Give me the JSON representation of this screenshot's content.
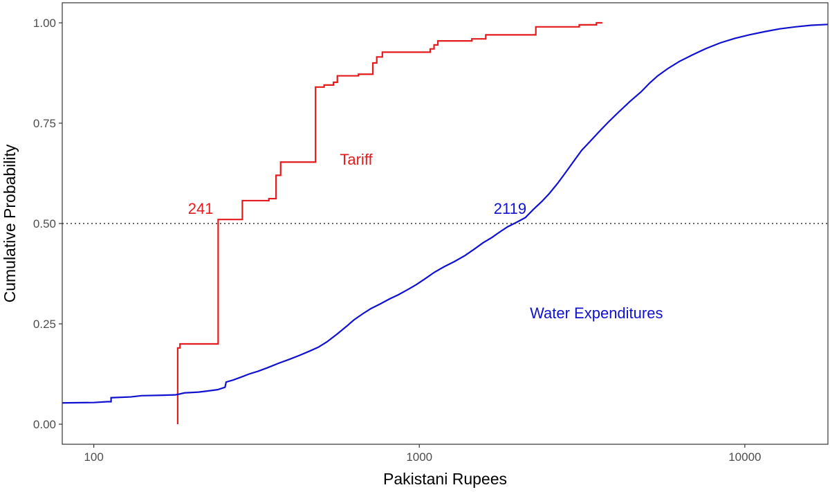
{
  "chart_data": {
    "type": "line",
    "step": true,
    "xlabel": "Pakistani Rupees",
    "ylabel": "Cumulative Probability",
    "x_scale": "log10",
    "xlim": [
      80,
      18000
    ],
    "ylim": [
      -0.05,
      1.05
    ],
    "x_ticks": [
      100,
      1000,
      10000
    ],
    "x_tick_labels": [
      "100",
      "1000",
      "10000"
    ],
    "y_ticks": [
      0,
      0.25,
      0.5,
      0.75,
      1
    ],
    "y_tick_labels": [
      "0.00",
      "0.25",
      "0.50",
      "0.75",
      "1.00"
    ],
    "grid": false,
    "reference_line": {
      "y": 0.5,
      "style": "dotted",
      "color": "#333333"
    },
    "series": [
      {
        "color": "#e41a1c",
        "label_color": "#e41a1c",
        "points": [
          [
            181,
            0.0
          ],
          [
            181,
            0.19
          ],
          [
            184,
            0.19
          ],
          [
            184,
            0.2
          ],
          [
            241,
            0.2
          ],
          [
            241,
            0.51
          ],
          [
            286,
            0.51
          ],
          [
            286,
            0.557
          ],
          [
            345,
            0.557
          ],
          [
            345,
            0.562
          ],
          [
            363,
            0.562
          ],
          [
            363,
            0.62
          ],
          [
            375,
            0.62
          ],
          [
            375,
            0.653
          ],
          [
            480,
            0.653
          ],
          [
            480,
            0.84
          ],
          [
            510,
            0.84
          ],
          [
            510,
            0.845
          ],
          [
            545,
            0.845
          ],
          [
            545,
            0.852
          ],
          [
            560,
            0.852
          ],
          [
            560,
            0.868
          ],
          [
            650,
            0.868
          ],
          [
            650,
            0.872
          ],
          [
            720,
            0.872
          ],
          [
            720,
            0.9
          ],
          [
            740,
            0.9
          ],
          [
            740,
            0.915
          ],
          [
            770,
            0.915
          ],
          [
            770,
            0.927
          ],
          [
            1080,
            0.927
          ],
          [
            1080,
            0.935
          ],
          [
            1110,
            0.935
          ],
          [
            1110,
            0.945
          ],
          [
            1140,
            0.945
          ],
          [
            1140,
            0.955
          ],
          [
            1450,
            0.955
          ],
          [
            1450,
            0.96
          ],
          [
            1600,
            0.96
          ],
          [
            1600,
            0.97
          ],
          [
            2280,
            0.97
          ],
          [
            2280,
            0.99
          ],
          [
            3100,
            0.99
          ],
          [
            3100,
            0.995
          ],
          [
            3500,
            0.995
          ],
          [
            3500,
            1.0
          ],
          [
            3650,
            1.0
          ]
        ]
      },
      {
        "color": "#1010d0",
        "label_color": "#1010d0",
        "points": [
          [
            80,
            0.053
          ],
          [
            100,
            0.054
          ],
          [
            110,
            0.056
          ],
          [
            113,
            0.056
          ],
          [
            113,
            0.066
          ],
          [
            130,
            0.068
          ],
          [
            140,
            0.071
          ],
          [
            160,
            0.072
          ],
          [
            178,
            0.073
          ],
          [
            183,
            0.075
          ],
          [
            190,
            0.078
          ],
          [
            210,
            0.08
          ],
          [
            225,
            0.083
          ],
          [
            240,
            0.086
          ],
          [
            253,
            0.092
          ],
          [
            255,
            0.105
          ],
          [
            268,
            0.11
          ],
          [
            285,
            0.118
          ],
          [
            300,
            0.125
          ],
          [
            320,
            0.132
          ],
          [
            340,
            0.14
          ],
          [
            370,
            0.152
          ],
          [
            400,
            0.162
          ],
          [
            430,
            0.172
          ],
          [
            460,
            0.182
          ],
          [
            490,
            0.192
          ],
          [
            520,
            0.205
          ],
          [
            560,
            0.225
          ],
          [
            600,
            0.245
          ],
          [
            630,
            0.26
          ],
          [
            670,
            0.275
          ],
          [
            710,
            0.288
          ],
          [
            760,
            0.3
          ],
          [
            810,
            0.312
          ],
          [
            860,
            0.322
          ],
          [
            920,
            0.335
          ],
          [
            980,
            0.348
          ],
          [
            1040,
            0.362
          ],
          [
            1110,
            0.378
          ],
          [
            1190,
            0.392
          ],
          [
            1280,
            0.405
          ],
          [
            1380,
            0.42
          ],
          [
            1480,
            0.437
          ],
          [
            1570,
            0.452
          ],
          [
            1670,
            0.465
          ],
          [
            1760,
            0.478
          ],
          [
            1870,
            0.492
          ],
          [
            1990,
            0.503
          ],
          [
            2119,
            0.515
          ],
          [
            2240,
            0.535
          ],
          [
            2380,
            0.555
          ],
          [
            2510,
            0.575
          ],
          [
            2660,
            0.6
          ],
          [
            2820,
            0.628
          ],
          [
            2980,
            0.655
          ],
          [
            3150,
            0.682
          ],
          [
            3350,
            0.705
          ],
          [
            3560,
            0.728
          ],
          [
            3800,
            0.752
          ],
          [
            4100,
            0.778
          ],
          [
            4450,
            0.805
          ],
          [
            4800,
            0.828
          ],
          [
            5100,
            0.85
          ],
          [
            5400,
            0.868
          ],
          [
            5800,
            0.886
          ],
          [
            6300,
            0.904
          ],
          [
            6900,
            0.92
          ],
          [
            7600,
            0.936
          ],
          [
            8400,
            0.95
          ],
          [
            9300,
            0.961
          ],
          [
            10300,
            0.97
          ],
          [
            11500,
            0.978
          ],
          [
            12800,
            0.985
          ],
          [
            14300,
            0.99
          ],
          [
            16000,
            0.994
          ],
          [
            18000,
            0.996
          ]
        ]
      }
    ],
    "annotations": [
      {
        "text": "Tariff",
        "x": 640,
        "y": 0.66,
        "color": "#e41a1c",
        "anchor": "middle"
      },
      {
        "text": "241",
        "x": 213,
        "y": 0.538,
        "color": "#e41a1c",
        "anchor": "middle"
      },
      {
        "text": "2119",
        "x": 1900,
        "y": 0.538,
        "color": "#1010d0",
        "anchor": "middle"
      },
      {
        "text": "Water Expenditures",
        "x": 3500,
        "y": 0.278,
        "color": "#1010d0",
        "anchor": "middle"
      }
    ]
  }
}
